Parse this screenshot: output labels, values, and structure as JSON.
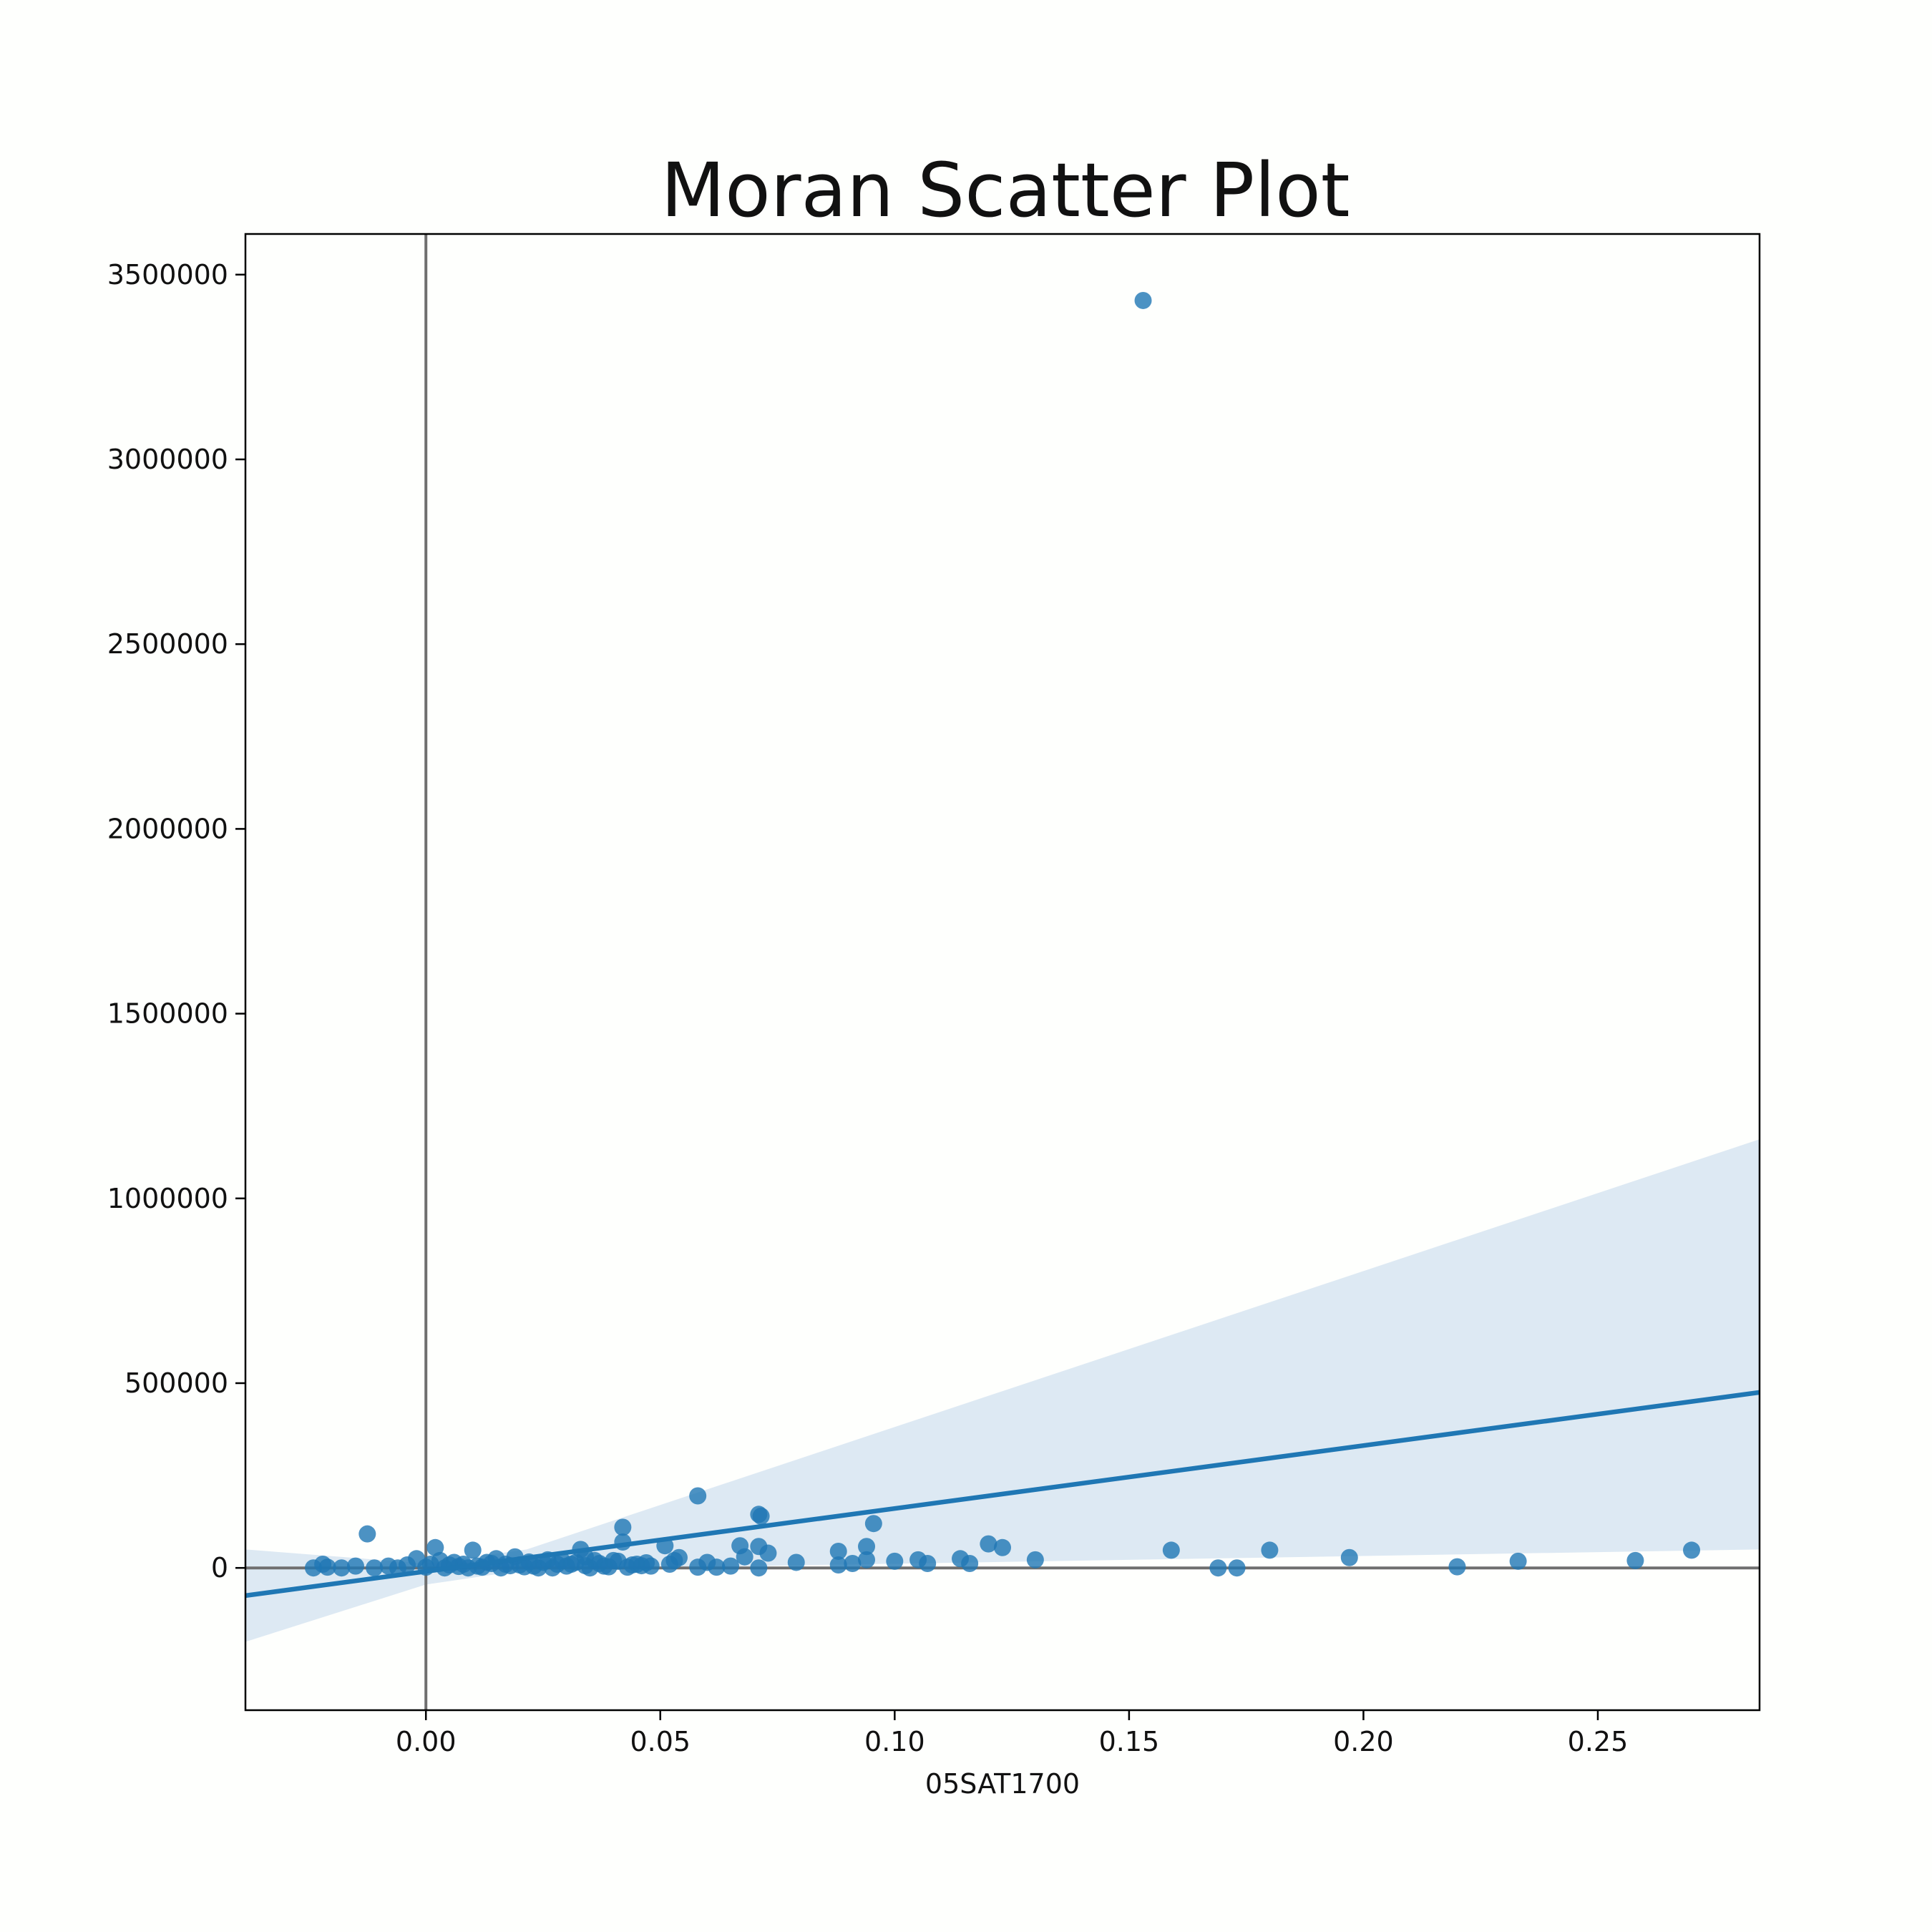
{
  "chart_data": {
    "type": "scatter",
    "title": "Moran Scatter Plot",
    "xlabel": "05SAT1700",
    "ylabel": "",
    "xlim": [
      -0.0385,
      0.2845
    ],
    "ylim": [
      -385000,
      3610000
    ],
    "xticks": [
      0.0,
      0.05,
      0.1,
      0.15,
      0.2,
      0.25
    ],
    "xtick_labels": [
      "0.00",
      "0.05",
      "0.10",
      "0.15",
      "0.20",
      "0.25"
    ],
    "yticks": [
      0,
      500000,
      1000000,
      1500000,
      2000000,
      2500000,
      3000000,
      3500000
    ],
    "ytick_labels": [
      "0",
      "500000",
      "1000000",
      "1500000",
      "2000000",
      "2500000",
      "3000000",
      "3500000"
    ],
    "grid": false,
    "reference_lines": {
      "x": 0,
      "y": 0,
      "color": "#6f6f6f"
    },
    "colors": {
      "points": "#1f77b4",
      "line": "#1f77b4",
      "band": "#dde9f3",
      "frame": "#000000"
    },
    "regression": {
      "x": [
        -0.0385,
        0.2845
      ],
      "y": [
        -75000,
        475000
      ]
    },
    "confidence_band": {
      "x": [
        -0.0385,
        0.0,
        0.0215,
        0.2845
      ],
      "lower": [
        -200000,
        -45000,
        -5000,
        50000
      ],
      "upper": [
        50000,
        12000,
        50000,
        1160000
      ]
    },
    "points": [
      [
        0.153,
        3430000
      ],
      [
        0.058,
        195000
      ],
      [
        0.071,
        145000
      ],
      [
        0.0715,
        140000
      ],
      [
        0.0955,
        120000
      ],
      [
        0.042,
        110000
      ],
      [
        -0.0125,
        92000
      ],
      [
        0.12,
        65000
      ],
      [
        0.123,
        55000
      ],
      [
        0.067,
        60000
      ],
      [
        0.071,
        58000
      ],
      [
        0.073,
        40000
      ],
      [
        0.068,
        30000
      ],
      [
        0.088,
        45000
      ],
      [
        0.094,
        58000
      ],
      [
        0.094,
        22000
      ],
      [
        0.091,
        12000
      ],
      [
        0.088,
        8000
      ],
      [
        0.1,
        18000
      ],
      [
        0.105,
        22000
      ],
      [
        0.107,
        12000
      ],
      [
        0.114,
        25000
      ],
      [
        0.116,
        12000
      ],
      [
        0.13,
        22000
      ],
      [
        0.159,
        48000
      ],
      [
        0.169,
        0
      ],
      [
        0.173,
        0
      ],
      [
        0.18,
        48000
      ],
      [
        0.197,
        28000
      ],
      [
        0.22,
        3000
      ],
      [
        0.233,
        18000
      ],
      [
        0.258,
        20000
      ],
      [
        0.27,
        48000
      ],
      [
        0.079,
        15000
      ],
      [
        0.065,
        5000
      ],
      [
        0.062,
        2000
      ],
      [
        0.06,
        15000
      ],
      [
        0.058,
        2000
      ],
      [
        0.071,
        0
      ],
      [
        0.051,
        60000
      ],
      [
        0.054,
        28000
      ],
      [
        0.052,
        10000
      ],
      [
        0.053,
        20000
      ],
      [
        0.048,
        5000
      ],
      [
        0.045,
        10000
      ],
      [
        0.042,
        70000
      ],
      [
        0.04,
        20000
      ],
      [
        0.043,
        2000
      ],
      [
        0.038,
        5000
      ],
      [
        0.036,
        20000
      ],
      [
        0.035,
        0
      ],
      [
        0.033,
        50000
      ],
      [
        0.034,
        30000
      ],
      [
        0.031,
        10000
      ],
      [
        0.029,
        20000
      ],
      [
        0.027,
        0
      ],
      [
        0.025,
        15000
      ],
      [
        0.023,
        5000
      ],
      [
        0.019,
        30000
      ],
      [
        0.017,
        10000
      ],
      [
        0.015,
        25000
      ],
      [
        0.013,
        15000
      ],
      [
        0.011,
        5000
      ],
      [
        0.01,
        48000
      ],
      [
        0.008,
        10000
      ],
      [
        0.006,
        15000
      ],
      [
        0.004,
        0
      ],
      [
        0.003,
        20000
      ],
      [
        0.002,
        55000
      ],
      [
        0.001,
        10000
      ],
      [
        0.0,
        2000
      ],
      [
        -0.002,
        25000
      ],
      [
        -0.004,
        8000
      ],
      [
        -0.006,
        0
      ],
      [
        -0.008,
        5000
      ],
      [
        -0.011,
        0
      ],
      [
        -0.015,
        5000
      ],
      [
        -0.018,
        0
      ],
      [
        -0.021,
        2000
      ],
      [
        -0.022,
        10000
      ],
      [
        -0.024,
        0
      ],
      [
        0.009,
        0
      ],
      [
        0.012,
        2000
      ],
      [
        0.016,
        0
      ],
      [
        0.02,
        8000
      ],
      [
        0.024,
        0
      ],
      [
        0.028,
        10000
      ],
      [
        0.03,
        5000
      ],
      [
        0.032,
        15000
      ],
      [
        0.037,
        12000
      ],
      [
        0.039,
        3000
      ],
      [
        0.041,
        18000
      ],
      [
        0.044,
        8000
      ],
      [
        0.046,
        6000
      ],
      [
        0.047,
        14000
      ],
      [
        0.026,
        22000
      ],
      [
        0.022,
        16000
      ],
      [
        0.018,
        6000
      ],
      [
        0.014,
        12000
      ],
      [
        0.007,
        4000
      ],
      [
        0.005,
        8000
      ],
      [
        0.021,
        3000
      ],
      [
        0.034,
        6000
      ]
    ]
  }
}
